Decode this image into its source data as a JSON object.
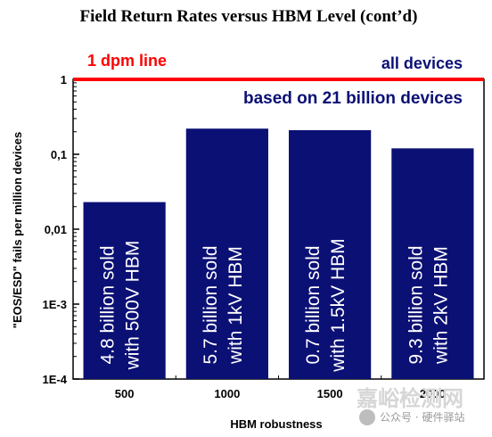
{
  "chart_data": {
    "type": "bar",
    "title": "Field Return Rates versus HBM Level (cont’d)",
    "xlabel": "HBM robustness",
    "ylabel": "\"EOS/ESD\" fails per million devices",
    "yscale": "log",
    "ylim": [
      0.0001,
      1
    ],
    "yticks": [
      {
        "value": 1,
        "label": "1"
      },
      {
        "value": 0.1,
        "label": "0,1"
      },
      {
        "value": 0.01,
        "label": "0,01"
      },
      {
        "value": 0.001,
        "label": "1E-3"
      },
      {
        "value": 0.0001,
        "label": "1E-4"
      }
    ],
    "categories": [
      "500",
      "1000",
      "1500",
      "2000"
    ],
    "values": [
      0.023,
      0.22,
      0.21,
      0.12
    ],
    "bar_labels": [
      [
        "4.8 billion sold",
        "with 500V HBM"
      ],
      [
        "5.7 billion sold",
        "with 1kV HBM"
      ],
      [
        "0.7 billion sold",
        "with 1.5kV HBM"
      ],
      [
        "9.3 billion sold",
        "with 2kV HBM"
      ]
    ],
    "bar_color": "#0b1075",
    "reference_line": {
      "value": 1,
      "label": "1 dpm line",
      "label_right": "all devices",
      "color": "#ff0000"
    },
    "annotation": "based on 21 billion devices",
    "grid": false,
    "legend": "none"
  },
  "watermark": {
    "brand": "嘉峪检测网",
    "text": "公众号 · 硬件驿站"
  }
}
